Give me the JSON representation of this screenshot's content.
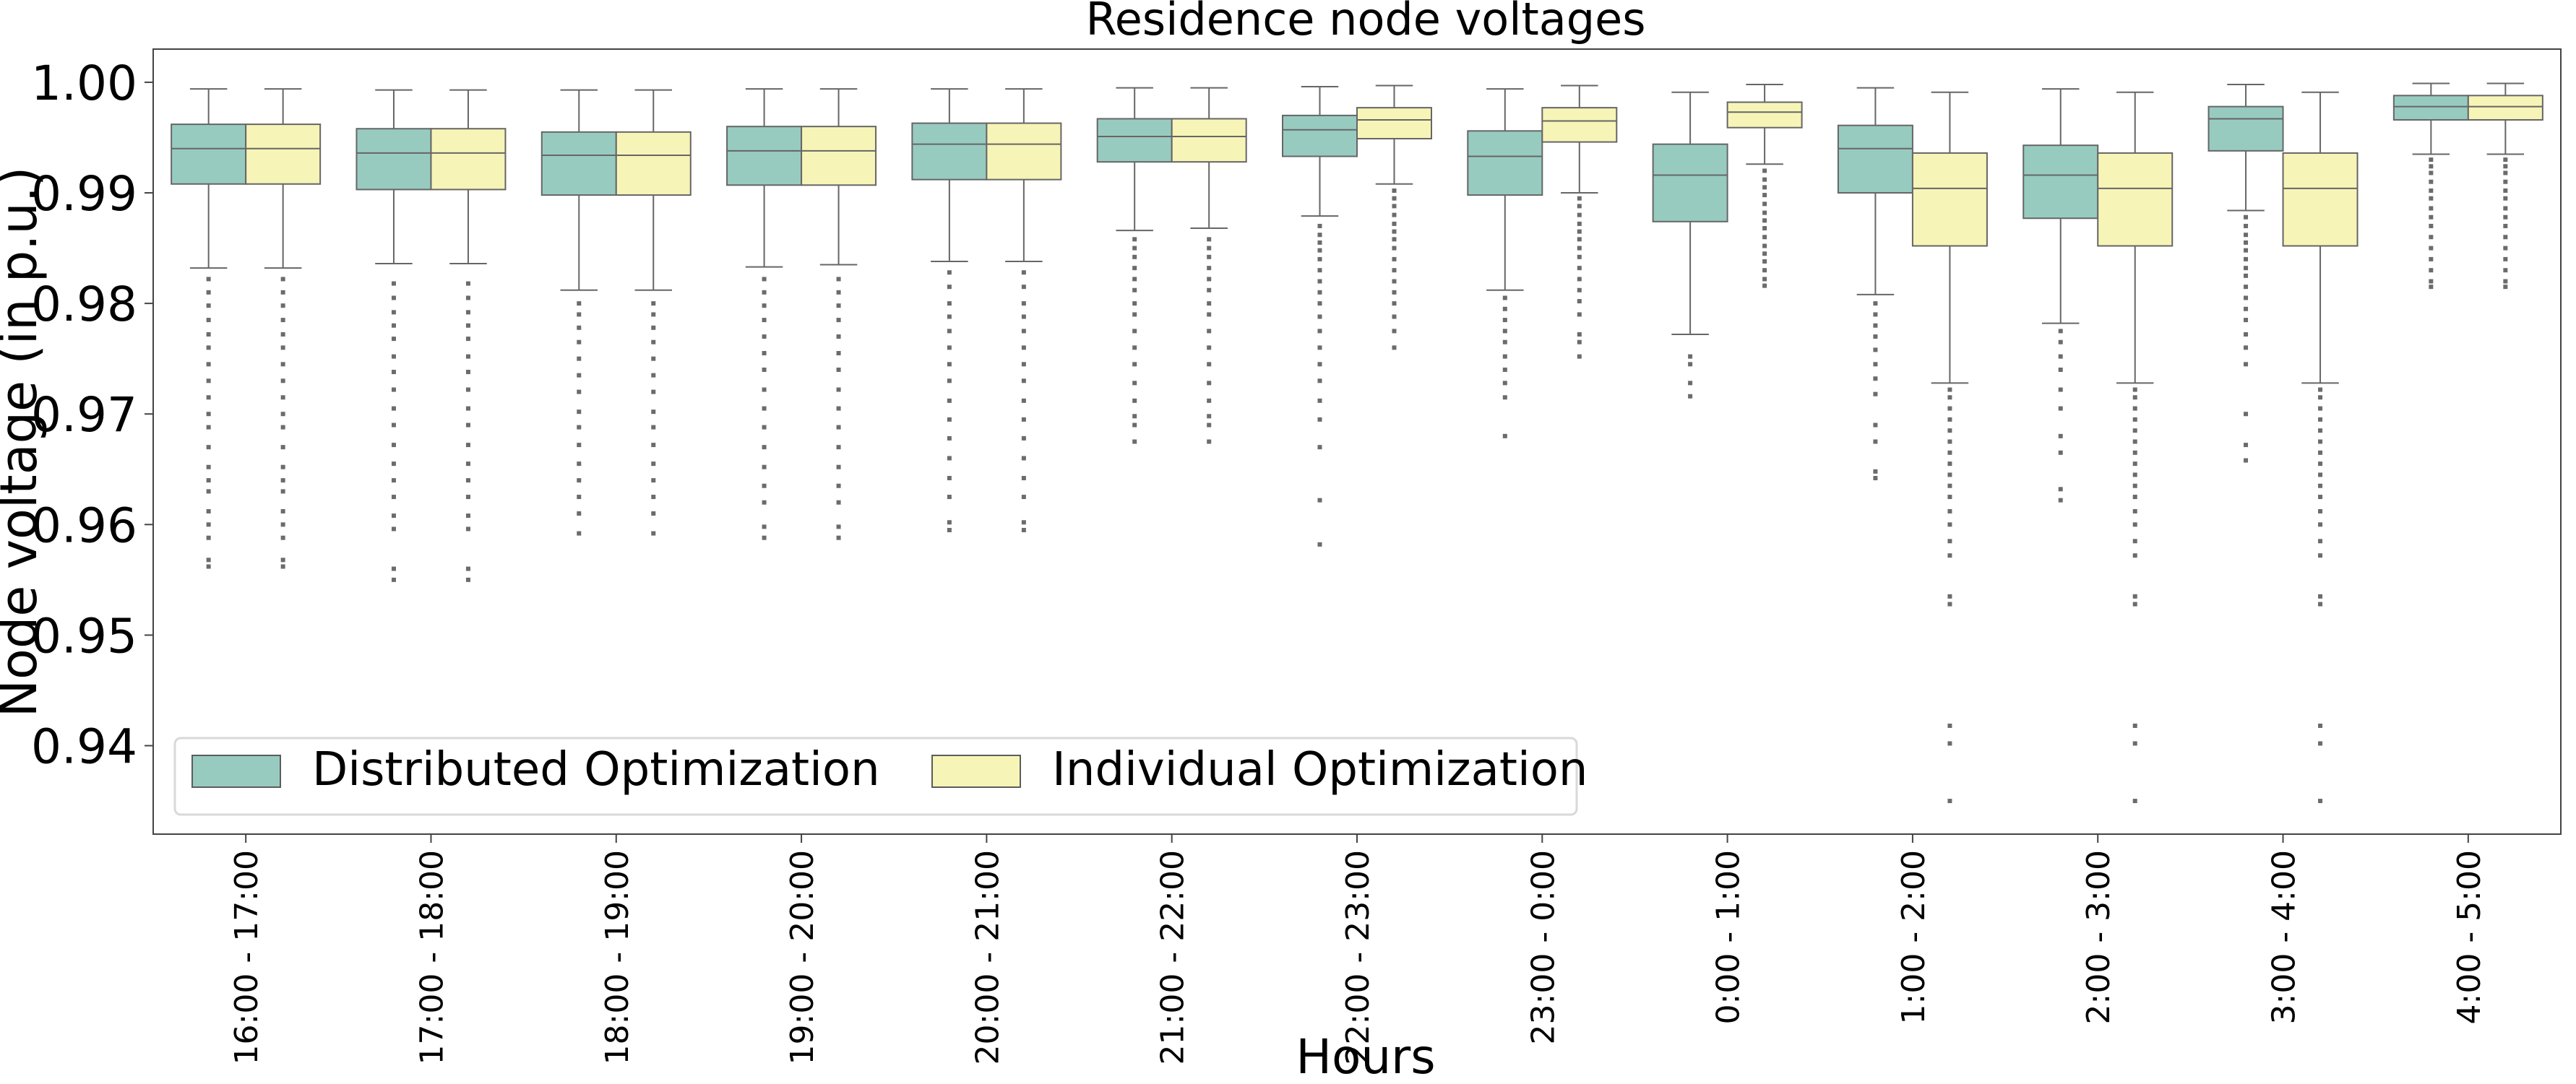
{
  "chart_data": {
    "type": "box",
    "title": "Residence node voltages",
    "xlabel": "Hours",
    "ylabel": "Node voltage (in p.u.)",
    "ylim": [
      0.932,
      1.003
    ],
    "yticks": [
      "0.94",
      "0.95",
      "0.96",
      "0.97",
      "0.98",
      "0.99",
      "1.00"
    ],
    "legend_position": "lower-left",
    "categories": [
      "16:00 - 17:00",
      "17:00 - 18:00",
      "18:00 - 19:00",
      "19:00 - 20:00",
      "20:00 - 21:00",
      "21:00 - 22:00",
      "22:00 - 23:00",
      "23:00 - 0:00",
      "0:00 - 1:00",
      "1:00 - 2:00",
      "2:00 - 3:00",
      "3:00 - 4:00",
      "4:00 - 5:00"
    ],
    "series": [
      {
        "name": "Distributed Optimization",
        "color": "#98cbc0",
        "boxes": [
          {
            "whislo": 0.9832,
            "q1": 0.9908,
            "med": 0.994,
            "q3": 0.9962,
            "whishi": 0.9994,
            "fliers": [
              0.9822,
              0.981,
              0.9798,
              0.9785,
              0.9772,
              0.976,
              0.9745,
              0.973,
              0.9715,
              0.97,
              0.9688,
              0.967,
              0.9652,
              0.964,
              0.963,
              0.9612,
              0.96,
              0.9588,
              0.9568,
              0.9562
            ]
          },
          {
            "whislo": 0.9836,
            "q1": 0.9903,
            "med": 0.9936,
            "q3": 0.9958,
            "whishi": 0.9993,
            "fliers": [
              0.9818,
              0.9805,
              0.9792,
              0.978,
              0.9768,
              0.9752,
              0.9738,
              0.9722,
              0.9705,
              0.969,
              0.9672,
              0.9655,
              0.964,
              0.9625,
              0.9608,
              0.9596,
              0.955,
              0.956
            ]
          },
          {
            "whislo": 0.9812,
            "q1": 0.9898,
            "med": 0.9934,
            "q3": 0.9955,
            "whishi": 0.9993,
            "fliers": [
              0.98,
              0.979,
              0.9778,
              0.9765,
              0.975,
              0.9735,
              0.972,
              0.9702,
              0.9688,
              0.9672,
              0.9655,
              0.964,
              0.9625,
              0.961,
              0.9592
            ]
          },
          {
            "whislo": 0.9833,
            "q1": 0.9907,
            "med": 0.9938,
            "q3": 0.996,
            "whishi": 0.9994,
            "fliers": [
              0.9822,
              0.981,
              0.9798,
              0.9785,
              0.977,
              0.9755,
              0.974,
              0.9722,
              0.9705,
              0.9688,
              0.967,
              0.9652,
              0.9635,
              0.962,
              0.9598,
              0.9588
            ]
          },
          {
            "whislo": 0.9838,
            "q1": 0.9912,
            "med": 0.9944,
            "q3": 0.9963,
            "whishi": 0.9994,
            "fliers": [
              0.9828,
              0.9815,
              0.98,
              0.9788,
              0.9775,
              0.976,
              0.9745,
              0.973,
              0.9712,
              0.9695,
              0.9678,
              0.966,
              0.9642,
              0.9625,
              0.9602,
              0.9595
            ]
          },
          {
            "whislo": 0.9866,
            "q1": 0.9928,
            "med": 0.9951,
            "q3": 0.9967,
            "whishi": 0.9995,
            "fliers": [
              0.9858,
              0.985,
              0.9842,
              0.9832,
              0.9822,
              0.9812,
              0.98,
              0.979,
              0.9775,
              0.976,
              0.9745,
              0.9728,
              0.9712,
              0.9698,
              0.969,
              0.9675
            ]
          },
          {
            "whislo": 0.9879,
            "q1": 0.9933,
            "med": 0.9957,
            "q3": 0.997,
            "whishi": 0.9996,
            "fliers": [
              0.987,
              0.9862,
              0.9855,
              0.9848,
              0.984,
              0.983,
              0.982,
              0.981,
              0.98,
              0.9788,
              0.9775,
              0.976,
              0.9745,
              0.973,
              0.9712,
              0.9695,
              0.967,
              0.9622,
              0.9582
            ]
          },
          {
            "whislo": 0.9812,
            "q1": 0.9898,
            "med": 0.9933,
            "q3": 0.9956,
            "whishi": 0.9994,
            "fliers": [
              0.9805,
              0.9795,
              0.9785,
              0.9775,
              0.9765,
              0.9752,
              0.974,
              0.9728,
              0.9715,
              0.968
            ]
          },
          {
            "whislo": 0.9772,
            "q1": 0.9874,
            "med": 0.9916,
            "q3": 0.9944,
            "whishi": 0.9991,
            "fliers": [
              0.9752,
              0.9745,
              0.9728,
              0.9716
            ]
          },
          {
            "whislo": 0.9808,
            "q1": 0.99,
            "med": 0.994,
            "q3": 0.9961,
            "whishi": 0.9995,
            "fliers": [
              0.98,
              0.979,
              0.978,
              0.977,
              0.9758,
              0.9745,
              0.9732,
              0.9718,
              0.969,
              0.9675,
              0.9648,
              0.9642
            ]
          },
          {
            "whislo": 0.9782,
            "q1": 0.9877,
            "med": 0.9916,
            "q3": 0.9943,
            "whishi": 0.9994,
            "fliers": [
              0.9775,
              0.9765,
              0.9752,
              0.974,
              0.9722,
              0.9705,
              0.968,
              0.9665,
              0.9632,
              0.9622
            ]
          },
          {
            "whislo": 0.9884,
            "q1": 0.9938,
            "med": 0.9967,
            "q3": 0.9978,
            "whishi": 0.9998,
            "fliers": [
              0.9878,
              0.987,
              0.9862,
              0.9855,
              0.9848,
              0.984,
              0.9832,
              0.9825,
              0.9815,
              0.9805,
              0.9795,
              0.9785,
              0.9772,
              0.976,
              0.9745,
              0.97,
              0.9672,
              0.9658
            ]
          },
          {
            "whislo": 0.9935,
            "q1": 0.9966,
            "med": 0.9978,
            "q3": 0.9988,
            "whishi": 0.9999,
            "fliers": [
              0.993,
              0.9924,
              0.9918,
              0.991,
              0.9902,
              0.9895,
              0.9886,
              0.9878,
              0.987,
              0.986,
              0.985,
              0.984,
              0.983,
              0.982,
              0.9815
            ]
          }
        ]
      },
      {
        "name": "Individual Optimization",
        "color": "#f7f4b7",
        "boxes": [
          {
            "whislo": 0.9832,
            "q1": 0.9908,
            "med": 0.994,
            "q3": 0.9962,
            "whishi": 0.9994,
            "fliers": [
              0.9822,
              0.981,
              0.9798,
              0.9785,
              0.9772,
              0.976,
              0.9745,
              0.973,
              0.9715,
              0.97,
              0.9688,
              0.967,
              0.9652,
              0.964,
              0.963,
              0.9612,
              0.96,
              0.9588,
              0.9568,
              0.9562
            ]
          },
          {
            "whislo": 0.9836,
            "q1": 0.9903,
            "med": 0.9936,
            "q3": 0.9958,
            "whishi": 0.9993,
            "fliers": [
              0.9818,
              0.9805,
              0.9792,
              0.978,
              0.9768,
              0.9752,
              0.9738,
              0.9722,
              0.9705,
              0.969,
              0.9672,
              0.9655,
              0.964,
              0.9625,
              0.9608,
              0.9596,
              0.955,
              0.956
            ]
          },
          {
            "whislo": 0.9812,
            "q1": 0.9898,
            "med": 0.9934,
            "q3": 0.9955,
            "whishi": 0.9993,
            "fliers": [
              0.98,
              0.979,
              0.9778,
              0.9765,
              0.975,
              0.9735,
              0.972,
              0.9702,
              0.9688,
              0.9672,
              0.9655,
              0.964,
              0.9625,
              0.961,
              0.9592
            ]
          },
          {
            "whislo": 0.9835,
            "q1": 0.9907,
            "med": 0.9938,
            "q3": 0.996,
            "whishi": 0.9994,
            "fliers": [
              0.9822,
              0.981,
              0.9798,
              0.9785,
              0.977,
              0.9755,
              0.974,
              0.9722,
              0.9705,
              0.9688,
              0.967,
              0.9652,
              0.9635,
              0.962,
              0.9598,
              0.9588
            ]
          },
          {
            "whislo": 0.9838,
            "q1": 0.9912,
            "med": 0.9944,
            "q3": 0.9963,
            "whishi": 0.9994,
            "fliers": [
              0.9828,
              0.9815,
              0.98,
              0.9788,
              0.9775,
              0.976,
              0.9745,
              0.973,
              0.9712,
              0.9695,
              0.9678,
              0.966,
              0.9642,
              0.9625,
              0.9602,
              0.9595
            ]
          },
          {
            "whislo": 0.9868,
            "q1": 0.9928,
            "med": 0.9951,
            "q3": 0.9967,
            "whishi": 0.9995,
            "fliers": [
              0.9858,
              0.985,
              0.9842,
              0.9832,
              0.9822,
              0.9812,
              0.98,
              0.979,
              0.9775,
              0.976,
              0.9745,
              0.9728,
              0.9712,
              0.9698,
              0.969,
              0.9675
            ]
          },
          {
            "whislo": 0.9908,
            "q1": 0.9949,
            "med": 0.9966,
            "q3": 0.9977,
            "whishi": 0.9997,
            "fliers": [
              0.9902,
              0.9895,
              0.9888,
              0.988,
              0.9872,
              0.9865,
              0.9858,
              0.985,
              0.984,
              0.983,
              0.982,
              0.981,
              0.98,
              0.9788,
              0.9775,
              0.976
            ]
          },
          {
            "whislo": 0.99,
            "q1": 0.9946,
            "med": 0.9965,
            "q3": 0.9977,
            "whishi": 0.9997,
            "fliers": [
              0.9895,
              0.9888,
              0.988,
              0.9872,
              0.9865,
              0.9858,
              0.985,
              0.9842,
              0.9832,
              0.9822,
              0.9812,
              0.9802,
              0.979,
              0.9772,
              0.9765,
              0.9752
            ]
          },
          {
            "whislo": 0.9926,
            "q1": 0.9959,
            "med": 0.9973,
            "q3": 0.9982,
            "whishi": 0.9998,
            "fliers": [
              0.992,
              0.9912,
              0.9905,
              0.9898,
              0.989,
              0.9882,
              0.9875,
              0.9868,
              0.986,
              0.9852,
              0.9845,
              0.9838,
              0.983,
              0.9822,
              0.9816
            ]
          },
          {
            "whislo": 0.9728,
            "q1": 0.9852,
            "med": 0.9904,
            "q3": 0.9936,
            "whishi": 0.9991,
            "fliers": [
              0.9722,
              0.9715,
              0.9705,
              0.9695,
              0.9685,
              0.9675,
              0.9665,
              0.9655,
              0.9645,
              0.9635,
              0.9625,
              0.9612,
              0.96,
              0.9585,
              0.9572,
              0.9535,
              0.9528,
              0.9418,
              0.9402,
              0.935
            ]
          },
          {
            "whislo": 0.9728,
            "q1": 0.9852,
            "med": 0.9904,
            "q3": 0.9936,
            "whishi": 0.9991,
            "fliers": [
              0.9722,
              0.9715,
              0.9705,
              0.9695,
              0.9685,
              0.9675,
              0.9665,
              0.9655,
              0.9645,
              0.9635,
              0.9625,
              0.9612,
              0.96,
              0.9585,
              0.9572,
              0.9535,
              0.9528,
              0.9418,
              0.9402,
              0.935
            ]
          },
          {
            "whislo": 0.9728,
            "q1": 0.9852,
            "med": 0.9904,
            "q3": 0.9936,
            "whishi": 0.9991,
            "fliers": [
              0.9722,
              0.9715,
              0.9705,
              0.9695,
              0.9685,
              0.9675,
              0.9665,
              0.9655,
              0.9645,
              0.9635,
              0.9625,
              0.9612,
              0.96,
              0.9585,
              0.9572,
              0.9535,
              0.9528,
              0.9418,
              0.9402,
              0.935
            ]
          },
          {
            "whislo": 0.9935,
            "q1": 0.9966,
            "med": 0.9978,
            "q3": 0.9988,
            "whishi": 0.9999,
            "fliers": [
              0.993,
              0.9924,
              0.9918,
              0.991,
              0.9902,
              0.9895,
              0.9886,
              0.9878,
              0.987,
              0.986,
              0.985,
              0.984,
              0.983,
              0.982,
              0.9815
            ]
          }
        ]
      }
    ]
  }
}
